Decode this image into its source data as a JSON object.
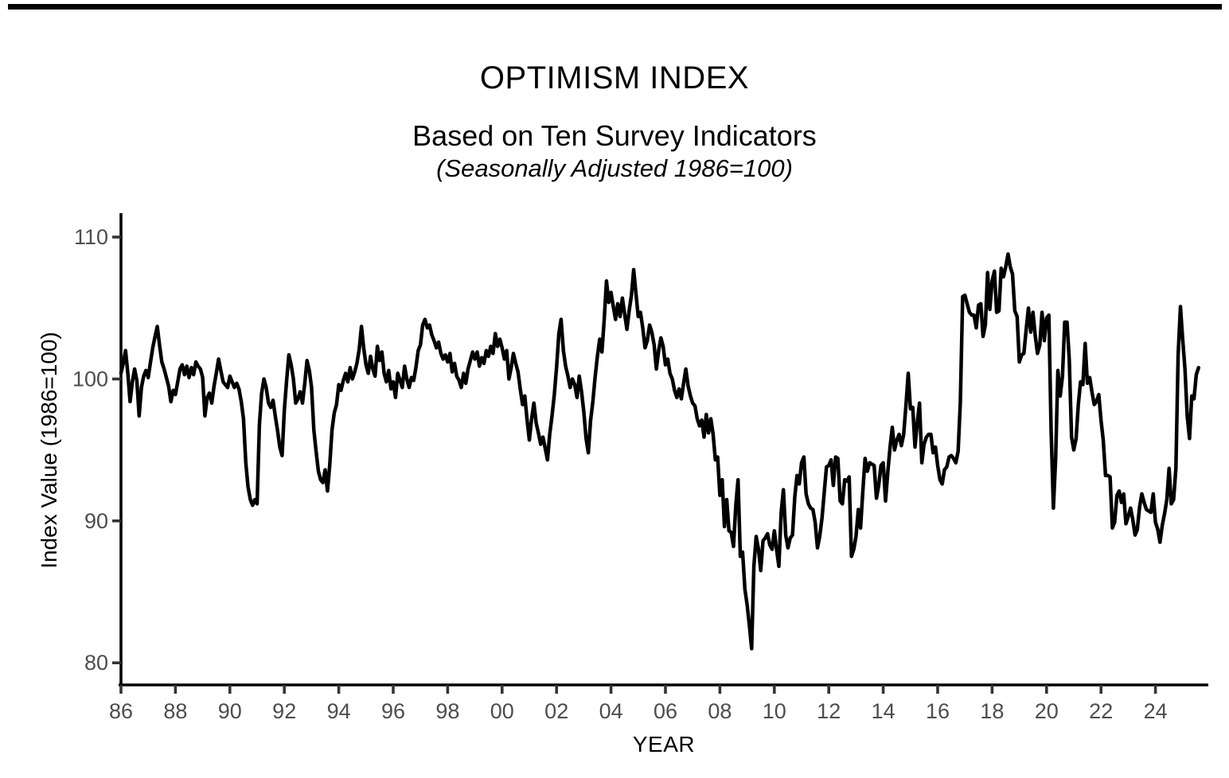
{
  "page": {
    "background": "#ffffff",
    "top_bar_color": "#000000"
  },
  "header": {
    "title": "OPTIMISM INDEX",
    "subtitle": "Based on Ten Survey Indicators",
    "subtitle2": "(Seasonally Adjusted 1986=100)"
  },
  "chart_data": {
    "type": "line",
    "title": "OPTIMISM INDEX",
    "subtitle": "Based on Ten Survey Indicators",
    "note": "(Seasonally Adjusted 1986=100)",
    "xlabel": "YEAR",
    "ylabel": "Index Value (1986=100)",
    "x_unit": "monthly",
    "start": "1986-01",
    "end": "2025-08",
    "xlim": [
      1986.0,
      2025.95
    ],
    "ylim": [
      78.5,
      111.7
    ],
    "y_ticks": [
      110,
      100,
      90,
      80
    ],
    "x_tick_labels": [
      "86",
      "88",
      "90",
      "92",
      "94",
      "96",
      "98",
      "00",
      "02",
      "04",
      "06",
      "08",
      "10",
      "12",
      "14",
      "16",
      "18",
      "20",
      "22",
      "24"
    ],
    "grid": false,
    "legend": "none",
    "line_color": "#000000",
    "axis_color": "#000000",
    "tick_color": "#333333",
    "tick_label_color": "#4d4d4d",
    "series": [
      {
        "year": 1986,
        "monthly": [
          100.4,
          101.1,
          102.0,
          100.4,
          98.4,
          99.8,
          100.7,
          99.9,
          97.4,
          99.4,
          100.2,
          100.6
        ]
      },
      {
        "year": 1987,
        "monthly": [
          100.1,
          101.2,
          102.2,
          103.0,
          103.7,
          102.4,
          101.2,
          100.7,
          100.1,
          99.5,
          98.4,
          99.2
        ]
      },
      {
        "year": 1988,
        "monthly": [
          98.9,
          99.8,
          100.7,
          101.0,
          100.3,
          100.9,
          100.1,
          100.8,
          100.3,
          101.2,
          100.9,
          100.7
        ]
      },
      {
        "year": 1989,
        "monthly": [
          100.1,
          97.4,
          98.7,
          99.0,
          98.3,
          99.5,
          100.4,
          101.4,
          100.6,
          99.8,
          99.6,
          99.4
        ]
      },
      {
        "year": 1990,
        "monthly": [
          100.2,
          99.8,
          99.4,
          99.7,
          99.3,
          98.4,
          97.2,
          94.1,
          92.4,
          91.5,
          91.1,
          91.5
        ]
      },
      {
        "year": 1991,
        "monthly": [
          91.2,
          96.8,
          99.0,
          100.0,
          99.4,
          98.3,
          98.0,
          98.5,
          97.4,
          96.4,
          95.2,
          94.6
        ]
      },
      {
        "year": 1992,
        "monthly": [
          97.8,
          99.9,
          101.7,
          101.0,
          100.0,
          98.3,
          98.6,
          99.1,
          98.3,
          99.7,
          101.3,
          100.6
        ]
      },
      {
        "year": 1993,
        "monthly": [
          99.4,
          96.4,
          94.9,
          93.5,
          92.9,
          92.7,
          93.6,
          92.1,
          93.9,
          96.4,
          97.6,
          98.2
        ]
      },
      {
        "year": 1994,
        "monthly": [
          99.6,
          99.2,
          99.9,
          100.4,
          99.8,
          100.8,
          100.0,
          100.5,
          101.1,
          102.1,
          103.7,
          102.2
        ]
      },
      {
        "year": 1995,
        "monthly": [
          101.0,
          100.4,
          101.6,
          100.7,
          100.2,
          102.3,
          101.3,
          101.9,
          100.4,
          99.8,
          100.6,
          99.3
        ]
      },
      {
        "year": 1996,
        "monthly": [
          99.8,
          98.7,
          100.4,
          99.9,
          99.4,
          100.9,
          100.0,
          99.4,
          100.1,
          99.9,
          100.8,
          102.0
        ]
      },
      {
        "year": 1997,
        "monthly": [
          102.4,
          103.8,
          104.2,
          103.6,
          103.8,
          103.1,
          102.7,
          102.2,
          102.6,
          101.8,
          101.4,
          101.7
        ]
      },
      {
        "year": 1998,
        "monthly": [
          101.2,
          101.8,
          100.5,
          101.1,
          100.2,
          99.9,
          99.4,
          100.4,
          99.7,
          100.7,
          101.3,
          101.9
        ]
      },
      {
        "year": 1999,
        "monthly": [
          101.4,
          101.9,
          100.9,
          101.5,
          101.1,
          102.0,
          101.6,
          102.3,
          101.8,
          103.2,
          102.3,
          102.8
        ]
      },
      {
        "year": 2000,
        "monthly": [
          102.2,
          101.4,
          102.0,
          100.0,
          100.8,
          101.8,
          101.1,
          100.5,
          99.3,
          98.2,
          98.8,
          97.1
        ]
      },
      {
        "year": 2001,
        "monthly": [
          95.7,
          97.2,
          98.3,
          96.9,
          96.2,
          95.4,
          95.9,
          95.1,
          94.3,
          96.1,
          97.4,
          98.9
        ]
      },
      {
        "year": 2002,
        "monthly": [
          100.8,
          103.2,
          104.2,
          102.0,
          100.9,
          100.2,
          99.4,
          100.0,
          99.6,
          98.7,
          100.2,
          99.1
        ]
      },
      {
        "year": 2003,
        "monthly": [
          97.7,
          95.8,
          94.8,
          97.1,
          98.4,
          100.1,
          101.6,
          102.8,
          101.9,
          104.2,
          106.9,
          105.4
        ]
      },
      {
        "year": 2004,
        "monthly": [
          106.1,
          105.1,
          104.2,
          105.3,
          104.4,
          105.7,
          104.6,
          103.5,
          104.8,
          105.9,
          107.7,
          106.0
        ]
      },
      {
        "year": 2005,
        "monthly": [
          104.4,
          104.7,
          103.6,
          102.2,
          102.7,
          103.8,
          103.3,
          102.4,
          100.7,
          102.0,
          102.9,
          102.3
        ]
      },
      {
        "year": 2006,
        "monthly": [
          101.0,
          101.4,
          100.4,
          100.0,
          99.2,
          98.7,
          99.3,
          98.6,
          99.7,
          100.7,
          99.5,
          98.8
        ]
      },
      {
        "year": 2007,
        "monthly": [
          98.3,
          98.1,
          97.2,
          96.7,
          97.1,
          95.9,
          97.5,
          96.2,
          97.2,
          96.1,
          94.3,
          94.5
        ]
      },
      {
        "year": 2008,
        "monthly": [
          91.8,
          92.9,
          89.6,
          91.5,
          89.3,
          89.2,
          88.2,
          91.1,
          92.9,
          87.5,
          87.8,
          85.2
        ]
      },
      {
        "year": 2009,
        "monthly": [
          84.1,
          82.6,
          81.0,
          86.8,
          88.9,
          88.0,
          86.5,
          88.6,
          88.8,
          89.1,
          88.3,
          88.0
        ]
      },
      {
        "year": 2010,
        "monthly": [
          89.3,
          88.0,
          86.8,
          90.6,
          92.2,
          89.0,
          88.1,
          88.8,
          89.0,
          91.7,
          93.2,
          92.6
        ]
      },
      {
        "year": 2011,
        "monthly": [
          94.1,
          94.5,
          91.9,
          91.2,
          90.9,
          90.8,
          89.9,
          88.1,
          88.9,
          90.2,
          92.0,
          93.8
        ]
      },
      {
        "year": 2012,
        "monthly": [
          93.9,
          94.3,
          92.5,
          94.5,
          94.4,
          91.4,
          91.2,
          92.9,
          92.8,
          93.1,
          87.5,
          88.0
        ]
      },
      {
        "year": 2013,
        "monthly": [
          88.9,
          90.8,
          89.5,
          92.1,
          94.4,
          93.5,
          94.1,
          94.0,
          93.9,
          91.6,
          92.5,
          93.9
        ]
      },
      {
        "year": 2014,
        "monthly": [
          94.1,
          91.4,
          93.4,
          95.2,
          96.6,
          95.0,
          95.7,
          96.1,
          95.3,
          96.1,
          98.1,
          100.4
        ]
      },
      {
        "year": 2015,
        "monthly": [
          97.9,
          98.0,
          95.2,
          96.9,
          98.3,
          94.1,
          95.4,
          95.9,
          96.1,
          96.1,
          94.8,
          95.2
        ]
      },
      {
        "year": 2016,
        "monthly": [
          93.9,
          92.9,
          92.6,
          93.6,
          93.8,
          94.5,
          94.6,
          94.4,
          94.1,
          94.9,
          98.4,
          105.8
        ]
      },
      {
        "year": 2017,
        "monthly": [
          105.9,
          105.3,
          104.7,
          104.5,
          104.5,
          103.6,
          105.2,
          105.3,
          103.0,
          103.8,
          107.5,
          104.9
        ]
      },
      {
        "year": 2018,
        "monthly": [
          106.9,
          107.6,
          104.7,
          104.8,
          107.8,
          107.2,
          107.9,
          108.8,
          107.9,
          107.4,
          104.8,
          104.4
        ]
      },
      {
        "year": 2019,
        "monthly": [
          101.2,
          101.7,
          101.8,
          103.5,
          105.0,
          103.3,
          104.7,
          103.1,
          101.8,
          102.4,
          104.7,
          102.7
        ]
      },
      {
        "year": 2020,
        "monthly": [
          104.3,
          104.5,
          96.4,
          90.9,
          94.4,
          100.6,
          98.8,
          100.2,
          104.0,
          104.0,
          101.4,
          95.9
        ]
      },
      {
        "year": 2021,
        "monthly": [
          95.0,
          95.8,
          98.2,
          99.8,
          99.6,
          102.5,
          99.7,
          100.1,
          99.1,
          98.2,
          98.4,
          98.9
        ]
      },
      {
        "year": 2022,
        "monthly": [
          97.1,
          95.7,
          93.2,
          93.2,
          93.1,
          89.5,
          89.9,
          91.8,
          92.1,
          91.3,
          91.9,
          89.8
        ]
      },
      {
        "year": 2023,
        "monthly": [
          90.3,
          90.9,
          90.1,
          89.0,
          89.4,
          91.0,
          91.9,
          91.3,
          90.8,
          90.7,
          90.6,
          91.9
        ]
      },
      {
        "year": 2024,
        "monthly": [
          89.9,
          89.4,
          88.5,
          89.7,
          90.5,
          91.5,
          93.7,
          91.2,
          91.5,
          93.7,
          101.7,
          105.1
        ]
      },
      {
        "year": 2025,
        "monthly": [
          102.8,
          100.7,
          97.4,
          95.8,
          98.8,
          98.6,
          100.3,
          100.8
        ]
      }
    ]
  }
}
